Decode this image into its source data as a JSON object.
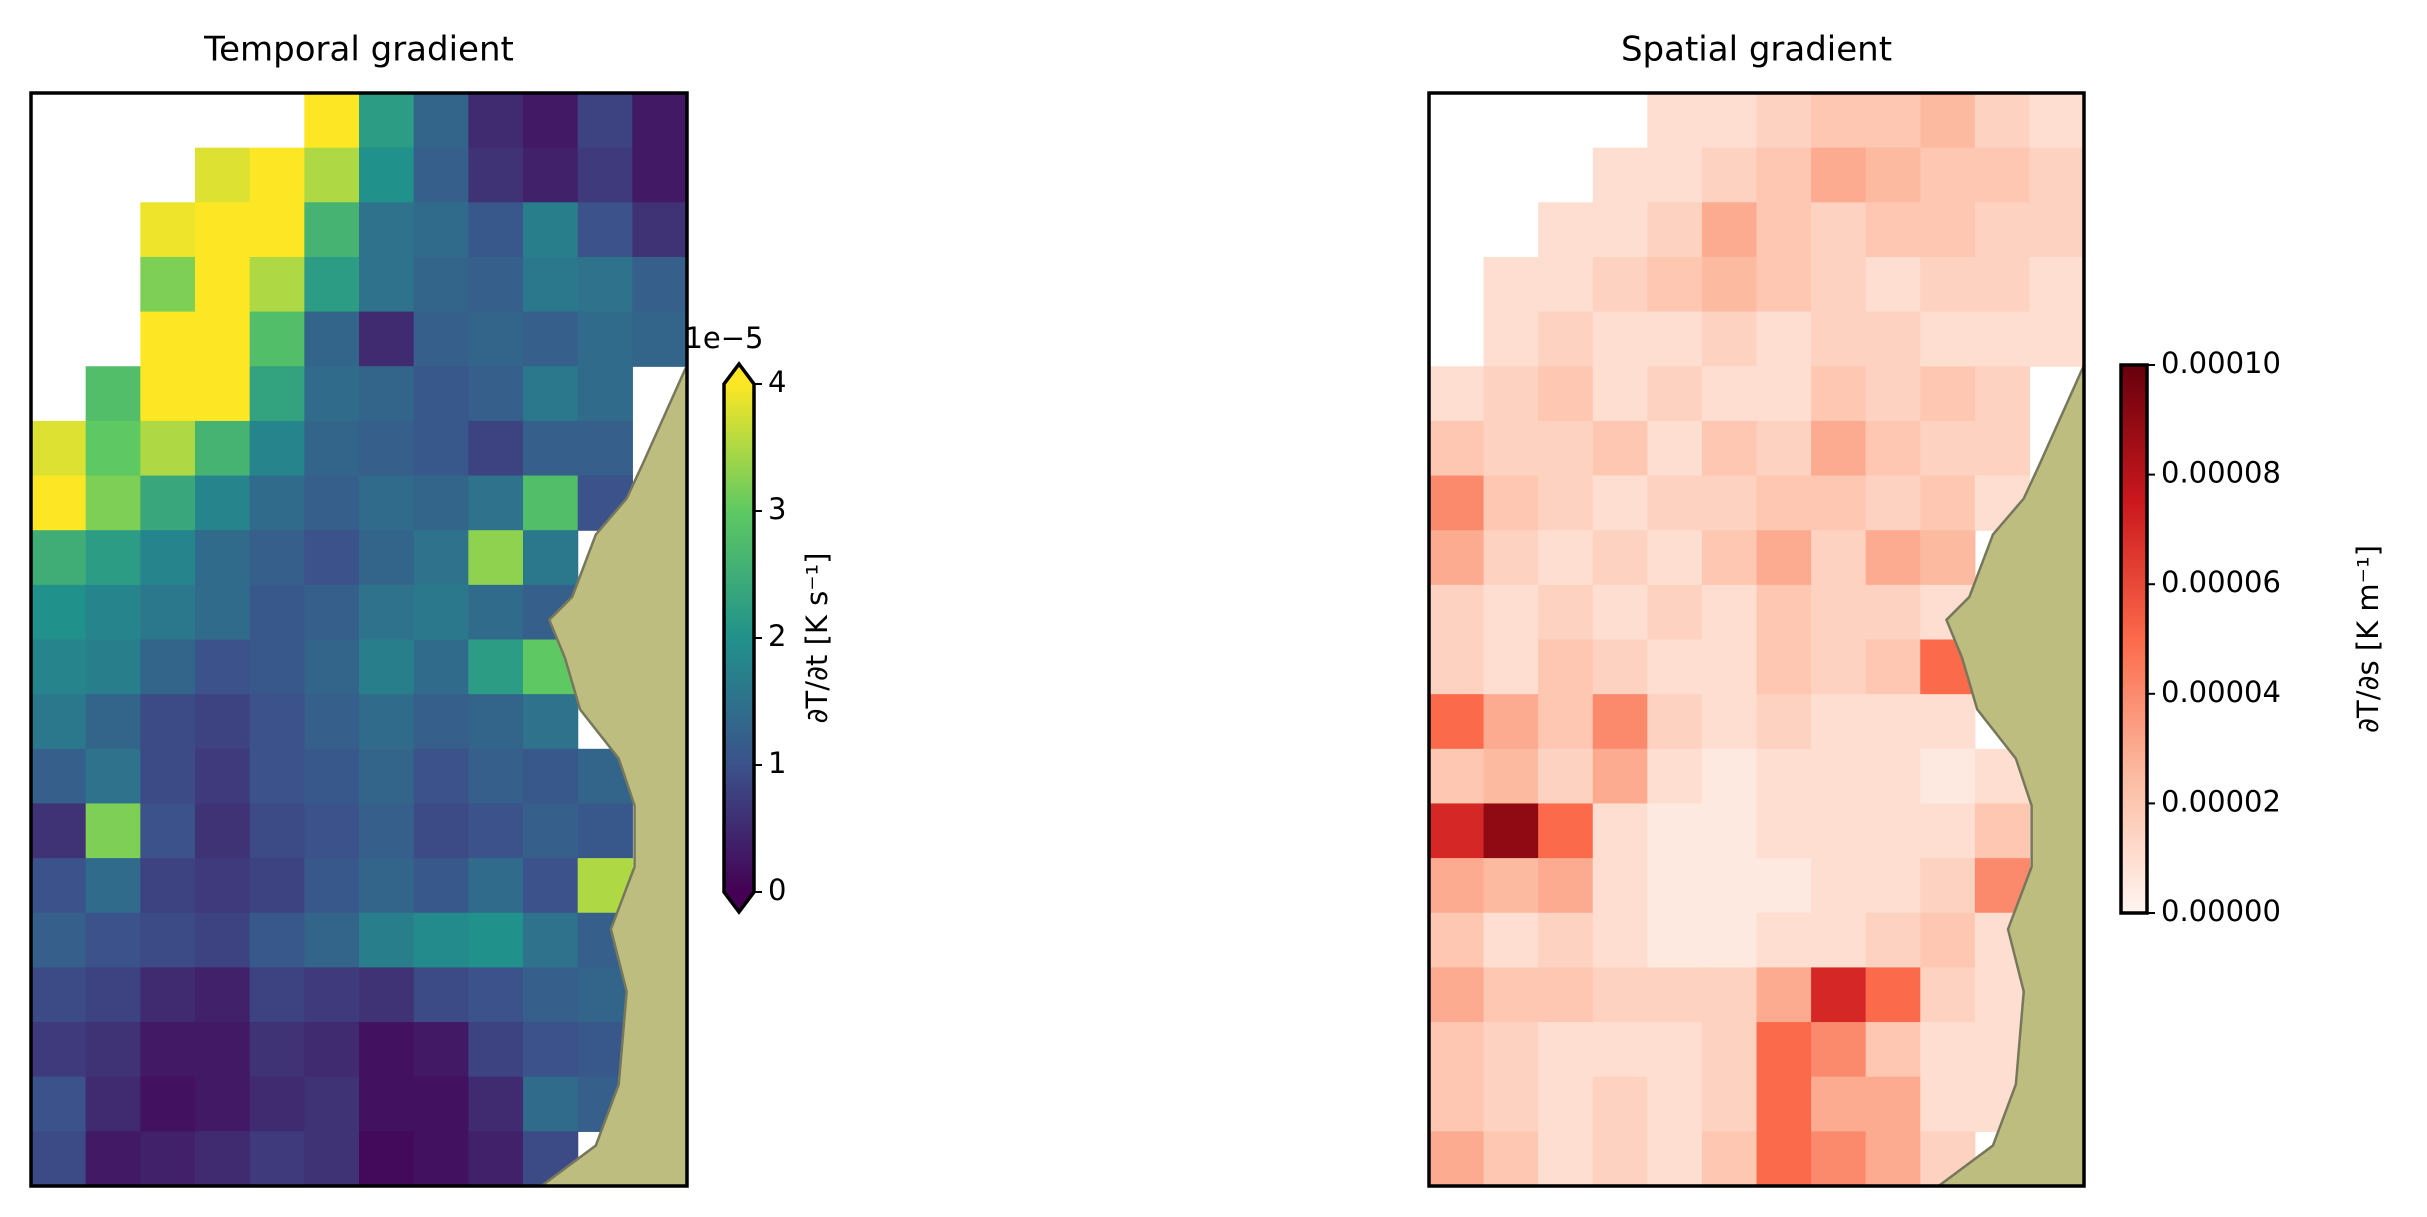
{
  "chart_data": [
    {
      "type": "heatmap",
      "title": "Temporal gradient",
      "colormap": "viridis",
      "extend": "both",
      "colorbar_label": "∂T/∂t [K s⁻¹]",
      "colorbar_offset": "1e−5",
      "zlim": [
        0,
        4
      ],
      "zticks": [
        0,
        1,
        2,
        3,
        4
      ],
      "z": [
        [
          null,
          null,
          null,
          null,
          null,
          4,
          2.2,
          1.3,
          0.5,
          0.3,
          0.8,
          0.3
        ],
        [
          null,
          null,
          null,
          3.8,
          4,
          3.5,
          2,
          1.2,
          0.6,
          0.4,
          0.7,
          0.3
        ],
        [
          null,
          null,
          3.9,
          4,
          4,
          2.6,
          1.5,
          1.4,
          1.1,
          1.7,
          1.0,
          0.6
        ],
        [
          null,
          null,
          3.2,
          4,
          3.5,
          2.2,
          1.5,
          1.3,
          1.2,
          1.6,
          1.5,
          1.2
        ],
        [
          null,
          null,
          4,
          4,
          2.8,
          1.3,
          0.5,
          1.2,
          1.3,
          1.2,
          1.4,
          1.3
        ],
        [
          null,
          2.8,
          4,
          4,
          2.3,
          1.4,
          1.3,
          1.1,
          1.2,
          1.6,
          1.4,
          null
        ],
        [
          3.8,
          3.0,
          3.5,
          2.6,
          1.8,
          1.3,
          1.2,
          1.1,
          0.8,
          1.2,
          1.2,
          null
        ],
        [
          4,
          3.2,
          2.4,
          1.8,
          1.4,
          1.2,
          1.4,
          1.3,
          1.5,
          2.8,
          1.0,
          null
        ],
        [
          2.5,
          2.2,
          1.8,
          1.4,
          1.2,
          1.0,
          1.3,
          1.5,
          3.3,
          1.6,
          null,
          null
        ],
        [
          2.0,
          1.8,
          1.6,
          1.4,
          1.1,
          1.2,
          1.5,
          1.6,
          1.4,
          1.2,
          null,
          null
        ],
        [
          1.8,
          1.7,
          1.3,
          1.0,
          1.1,
          1.3,
          1.7,
          1.4,
          2.2,
          3.0,
          null,
          null
        ],
        [
          1.6,
          1.3,
          0.9,
          0.8,
          1.0,
          1.2,
          1.4,
          1.2,
          1.3,
          1.5,
          null,
          null
        ],
        [
          1.2,
          1.5,
          0.9,
          0.7,
          1.0,
          1.1,
          1.3,
          1.0,
          1.2,
          1.1,
          1.3,
          null
        ],
        [
          0.6,
          3.2,
          1.0,
          0.6,
          0.9,
          1.0,
          1.2,
          0.9,
          1.0,
          1.2,
          1.1,
          null
        ],
        [
          1.0,
          1.4,
          0.8,
          0.7,
          0.8,
          1.1,
          1.3,
          1.1,
          1.4,
          1.0,
          3.5,
          null
        ],
        [
          1.2,
          1.0,
          0.9,
          0.8,
          1.1,
          1.3,
          1.7,
          1.9,
          2.0,
          1.5,
          1.2,
          null
        ],
        [
          0.9,
          0.8,
          0.5,
          0.4,
          0.8,
          0.7,
          0.6,
          0.9,
          1.0,
          1.2,
          1.3,
          null
        ],
        [
          0.7,
          0.6,
          0.3,
          0.3,
          0.6,
          0.5,
          0.2,
          0.3,
          0.8,
          1.0,
          1.1,
          null
        ],
        [
          1.0,
          0.5,
          0.2,
          0.3,
          0.5,
          0.6,
          0.2,
          0.2,
          0.5,
          1.4,
          1.2,
          null
        ],
        [
          0.9,
          0.3,
          0.4,
          0.5,
          0.7,
          0.6,
          0.1,
          0.2,
          0.4,
          0.9,
          null,
          null
        ]
      ]
    },
    {
      "type": "heatmap",
      "title": "Spatial gradient",
      "colormap": "reds",
      "extend": "neither",
      "colorbar_label": "∂T/∂s [K m⁻¹]",
      "zlim": [
        0,
        0.0001
      ],
      "zticks": [
        {
          "value": 0,
          "label": "0.00000"
        },
        {
          "value": 2e-05,
          "label": "0.00002"
        },
        {
          "value": 4e-05,
          "label": "0.00004"
        },
        {
          "value": 6e-05,
          "label": "0.00006"
        },
        {
          "value": 8e-05,
          "label": "0.00008"
        },
        {
          "value": 0.0001,
          "label": "0.00010"
        }
      ],
      "z": [
        [
          null,
          null,
          null,
          null,
          1e-05,
          1e-05,
          1.5e-05,
          2e-05,
          2e-05,
          2.5e-05,
          1.5e-05,
          1e-05
        ],
        [
          null,
          null,
          null,
          1e-05,
          1e-05,
          1.5e-05,
          2e-05,
          3e-05,
          2.5e-05,
          2e-05,
          2e-05,
          1.5e-05
        ],
        [
          null,
          null,
          1e-05,
          1e-05,
          1.5e-05,
          3e-05,
          2e-05,
          1.5e-05,
          2e-05,
          2e-05,
          1.5e-05,
          1.5e-05
        ],
        [
          null,
          1e-05,
          1e-05,
          1.5e-05,
          2e-05,
          2.5e-05,
          2e-05,
          1.5e-05,
          1e-05,
          1.5e-05,
          1.5e-05,
          1e-05
        ],
        [
          null,
          1e-05,
          1.5e-05,
          1e-05,
          1e-05,
          1.5e-05,
          1e-05,
          1.5e-05,
          1.5e-05,
          1e-05,
          1e-05,
          1e-05
        ],
        [
          1e-05,
          1.5e-05,
          2e-05,
          1e-05,
          1.5e-05,
          1e-05,
          1e-05,
          2e-05,
          1.5e-05,
          2e-05,
          1.5e-05,
          null
        ],
        [
          2e-05,
          1.5e-05,
          1.5e-05,
          2e-05,
          1e-05,
          2e-05,
          1.5e-05,
          3e-05,
          2e-05,
          1.5e-05,
          1.5e-05,
          null
        ],
        [
          4e-05,
          2e-05,
          1.5e-05,
          1e-05,
          1.5e-05,
          1.5e-05,
          2e-05,
          2e-05,
          1.5e-05,
          2e-05,
          1e-05,
          null
        ],
        [
          3e-05,
          1.5e-05,
          1e-05,
          1.5e-05,
          1e-05,
          2e-05,
          3e-05,
          1.5e-05,
          3e-05,
          2.5e-05,
          null,
          null
        ],
        [
          1.5e-05,
          1e-05,
          1.5e-05,
          1e-05,
          1.5e-05,
          1e-05,
          2e-05,
          1.5e-05,
          1.5e-05,
          1e-05,
          null,
          null
        ],
        [
          1.5e-05,
          1e-05,
          2e-05,
          1.5e-05,
          1e-05,
          1e-05,
          2e-05,
          1.5e-05,
          2e-05,
          5e-05,
          null,
          null
        ],
        [
          5e-05,
          3e-05,
          2e-05,
          4e-05,
          1.5e-05,
          1e-05,
          1.5e-05,
          1e-05,
          1e-05,
          1e-05,
          null,
          null
        ],
        [
          2e-05,
          2.5e-05,
          1.5e-05,
          3e-05,
          1e-05,
          5e-06,
          1e-05,
          1e-05,
          1e-05,
          5e-06,
          1e-05,
          null
        ],
        [
          7e-05,
          9e-05,
          5e-05,
          1e-05,
          5e-06,
          5e-06,
          1e-05,
          1e-05,
          1e-05,
          1e-05,
          2e-05,
          null
        ],
        [
          3e-05,
          2.5e-05,
          3e-05,
          1e-05,
          5e-06,
          5e-06,
          5e-06,
          1e-05,
          1e-05,
          1.5e-05,
          4e-05,
          null
        ],
        [
          2e-05,
          1e-05,
          1.5e-05,
          1e-05,
          5e-06,
          5e-06,
          1e-05,
          1e-05,
          1.5e-05,
          2e-05,
          1e-05,
          null
        ],
        [
          3e-05,
          2e-05,
          2e-05,
          1.5e-05,
          1.5e-05,
          1.5e-05,
          3e-05,
          7e-05,
          5e-05,
          1.5e-05,
          1e-05,
          null
        ],
        [
          2e-05,
          1.5e-05,
          1e-05,
          1e-05,
          1e-05,
          1.5e-05,
          5e-05,
          4e-05,
          2e-05,
          1e-05,
          1e-05,
          null
        ],
        [
          2e-05,
          1.5e-05,
          1e-05,
          1.5e-05,
          1e-05,
          1.5e-05,
          5e-05,
          3e-05,
          3e-05,
          1e-05,
          1e-05,
          null
        ],
        [
          3e-05,
          2e-05,
          1e-05,
          1.5e-05,
          1e-05,
          2e-05,
          5e-05,
          4e-05,
          3e-05,
          1.5e-05,
          null,
          null
        ]
      ]
    }
  ]
}
